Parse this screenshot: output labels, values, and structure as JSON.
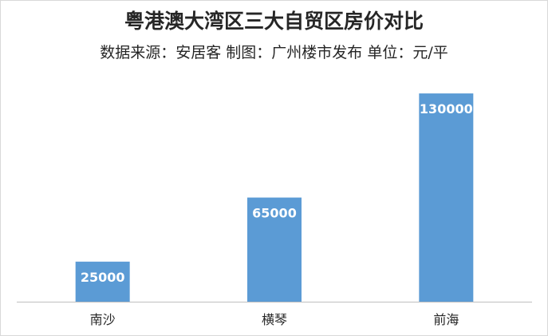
{
  "chart_data": {
    "type": "bar",
    "title": "粤港澳大湾区三大自贸区房价对比",
    "subtitle": "数据来源：安居客 制图：广州楼市发布 单位：元/平",
    "categories": [
      "南沙",
      "横琴",
      "前海"
    ],
    "values": [
      25000,
      65000,
      130000
    ],
    "data_labels": [
      "25000",
      "65000",
      "130000"
    ],
    "ylim": [
      0,
      140000
    ],
    "grid": false,
    "legend": "none",
    "colors": {
      "bar": "#5b9bd5",
      "axis": "#bfbfbf",
      "text": "#262626",
      "data_label": "#ffffff"
    }
  }
}
